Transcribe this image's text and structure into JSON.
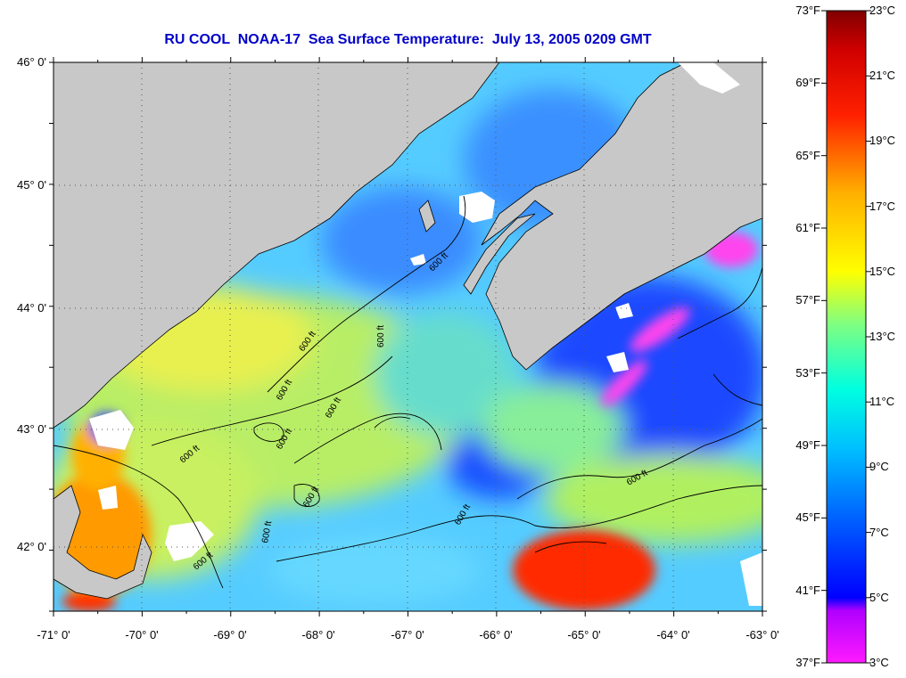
{
  "title": "RU COOL  NOAA-17  Sea Surface Temperature:  July 13, 2005 0209 GMT",
  "map": {
    "lat_labels": [
      "46° 0'",
      "45° 0'",
      "44° 0'",
      "43° 0'",
      "42° 0'"
    ],
    "lon_labels": [
      "-71° 0'",
      "-70° 0'",
      "-69° 0'",
      "-68° 0'",
      "-67° 0'",
      "-66° 0'",
      "-65° 0'",
      "-64° 0'",
      "-63° 0'"
    ],
    "isobath_labels": [
      "600 ft",
      "600 ft",
      "600 ft",
      "600 ft",
      "600 ft",
      "600 ft",
      "600 ft",
      "600 ft",
      "600 ft",
      "600 ft",
      "600 ft",
      "600 ft"
    ],
    "colors": {
      "land": "#c8c8c8",
      "cloud": "#ffffff",
      "title": "#0000c8"
    }
  },
  "colorbar": {
    "fahrenheit_labels": [
      "73°F",
      "69°F",
      "65°F",
      "61°F",
      "57°F",
      "53°F",
      "49°F",
      "45°F",
      "41°F",
      "37°F"
    ],
    "celsius_labels": [
      "23°C",
      "21°C",
      "19°C",
      "17°C",
      "15°C",
      "13°C",
      "11°C",
      "9°C",
      "7°C",
      "5°C",
      "3°C"
    ],
    "range_f": [
      37,
      73
    ],
    "range_c": [
      3,
      23
    ]
  }
}
